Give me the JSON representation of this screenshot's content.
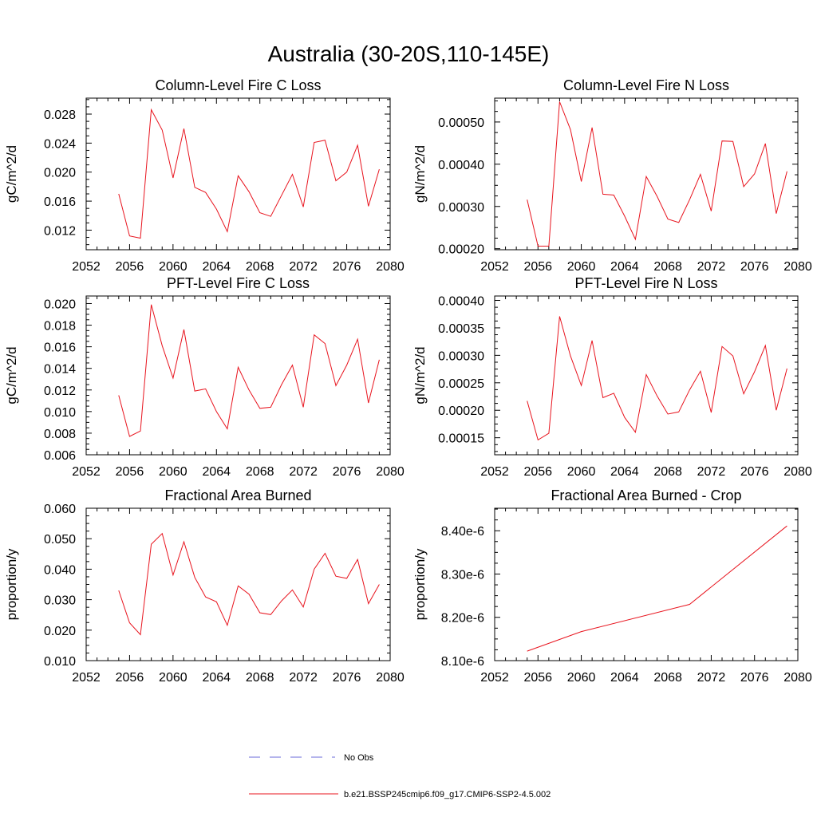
{
  "figure_title": "Australia (30-20S,110-145E)",
  "legend": {
    "obs_label": "No Obs",
    "model_label": "b.e21.BSSP245cmip6.f09_g17.CMIP6-SSP2-4.5.002",
    "obs_color": "#6a6ad8",
    "model_color": "#e8141e"
  },
  "chart_data": [
    {
      "type": "line",
      "title": "Column-Level Fire C Loss",
      "ylabel": "gC/m^2/d",
      "xlabel": "",
      "xlim": [
        2052,
        2080
      ],
      "ylim": [
        0.0093,
        0.0302
      ],
      "xticks": [
        2052,
        2056,
        2060,
        2064,
        2068,
        2072,
        2076,
        2080
      ],
      "xtick_labels": [
        "2052",
        "2056",
        "2060",
        "2064",
        "2068",
        "2072",
        "2076",
        "2080"
      ],
      "yticks": [
        0.012,
        0.016,
        0.02,
        0.024,
        0.028
      ],
      "ytick_labels": [
        "0.012",
        "0.016",
        "0.020",
        "0.024",
        "0.028"
      ],
      "series": [
        {
          "name": "b.e21.BSSP245cmip6.f09_g17.CMIP6-SSP2-4.5.002",
          "x": [
            2055,
            2056,
            2057,
            2058,
            2059,
            2060,
            2061,
            2062,
            2063,
            2064,
            2065,
            2066,
            2067,
            2068,
            2069,
            2070,
            2071,
            2072,
            2073,
            2074,
            2075,
            2076,
            2077,
            2078,
            2079
          ],
          "values": [
            0.017,
            0.0112,
            0.0109,
            0.0286,
            0.0258,
            0.0192,
            0.026,
            0.0179,
            0.0172,
            0.0149,
            0.0118,
            0.0195,
            0.0173,
            0.0144,
            0.0139,
            0.0168,
            0.0197,
            0.0152,
            0.0241,
            0.0244,
            0.0188,
            0.02,
            0.0237,
            0.0153,
            0.0204
          ]
        }
      ]
    },
    {
      "type": "line",
      "title": "Column-Level Fire N Loss",
      "ylabel": "gN/m^2/d",
      "xlabel": "",
      "xlim": [
        2052,
        2080
      ],
      "ylim": [
        0.0001975,
        0.0005565
      ],
      "xticks": [
        2052,
        2056,
        2060,
        2064,
        2068,
        2072,
        2076,
        2080
      ],
      "xtick_labels": [
        "2052",
        "2056",
        "2060",
        "2064",
        "2068",
        "2072",
        "2076",
        "2080"
      ],
      "yticks": [
        0.0002,
        0.0003,
        0.0004,
        0.0005
      ],
      "ytick_labels": [
        "0.00020",
        "0.00030",
        "0.00040",
        "0.00050"
      ],
      "series": [
        {
          "name": "b.e21.BSSP245cmip6.f09_g17.CMIP6-SSP2-4.5.002",
          "x": [
            2055,
            2056,
            2057,
            2058,
            2059,
            2060,
            2061,
            2062,
            2063,
            2064,
            2065,
            2066,
            2067,
            2068,
            2069,
            2070,
            2071,
            2072,
            2073,
            2074,
            2075,
            2076,
            2077,
            2078,
            2079
          ],
          "values": [
            0.000316,
            0.000206,
            0.000206,
            0.000548,
            0.000482,
            0.000359,
            0.000487,
            0.000329,
            0.000327,
            0.000277,
            0.000222,
            0.000371,
            0.000324,
            0.00027,
            0.000262,
            0.000316,
            0.000376,
            0.000289,
            0.000455,
            0.000454,
            0.000347,
            0.000377,
            0.000449,
            0.000283,
            0.000383
          ]
        }
      ]
    },
    {
      "type": "line",
      "title": "PFT-Level Fire C Loss",
      "ylabel": "gC/m^2/d",
      "xlabel": "",
      "xlim": [
        2052,
        2080
      ],
      "ylim": [
        0.006,
        0.0207
      ],
      "xticks": [
        2052,
        2056,
        2060,
        2064,
        2068,
        2072,
        2076,
        2080
      ],
      "xtick_labels": [
        "2052",
        "2056",
        "2060",
        "2064",
        "2068",
        "2072",
        "2076",
        "2080"
      ],
      "yticks": [
        0.006,
        0.008,
        0.01,
        0.012,
        0.014,
        0.016,
        0.018,
        0.02
      ],
      "ytick_labels": [
        "0.006",
        "0.008",
        "0.010",
        "0.012",
        "0.014",
        "0.016",
        "0.018",
        "0.020"
      ],
      "series": [
        {
          "name": "b.e21.BSSP245cmip6.f09_g17.CMIP6-SSP2-4.5.002",
          "x": [
            2055,
            2056,
            2057,
            2058,
            2059,
            2060,
            2061,
            2062,
            2063,
            2064,
            2065,
            2066,
            2067,
            2068,
            2069,
            2070,
            2071,
            2072,
            2073,
            2074,
            2075,
            2076,
            2077,
            2078,
            2079
          ],
          "values": [
            0.0115,
            0.0077,
            0.0082,
            0.0199,
            0.0161,
            0.0131,
            0.0176,
            0.0119,
            0.0121,
            0.01,
            0.0084,
            0.0141,
            0.012,
            0.0103,
            0.0104,
            0.0125,
            0.0143,
            0.0104,
            0.0171,
            0.0163,
            0.0124,
            0.0143,
            0.0167,
            0.0108,
            0.0148
          ]
        }
      ]
    },
    {
      "type": "line",
      "title": "PFT-Level Fire N Loss",
      "ylabel": "gN/m^2/d",
      "xlabel": "",
      "xlim": [
        2052,
        2080
      ],
      "ylim": [
        0.000119,
        0.000408
      ],
      "xticks": [
        2052,
        2056,
        2060,
        2064,
        2068,
        2072,
        2076,
        2080
      ],
      "xtick_labels": [
        "2052",
        "2056",
        "2060",
        "2064",
        "2068",
        "2072",
        "2076",
        "2080"
      ],
      "yticks": [
        0.00015,
        0.0002,
        0.00025,
        0.0003,
        0.00035,
        0.0004
      ],
      "ytick_labels": [
        "0.00015",
        "0.00020",
        "0.00025",
        "0.00030",
        "0.00035",
        "0.00040"
      ],
      "series": [
        {
          "name": "b.e21.BSSP245cmip6.f09_g17.CMIP6-SSP2-4.5.002",
          "x": [
            2055,
            2056,
            2057,
            2058,
            2059,
            2060,
            2061,
            2062,
            2063,
            2064,
            2065,
            2066,
            2067,
            2068,
            2069,
            2070,
            2071,
            2072,
            2073,
            2074,
            2075,
            2076,
            2077,
            2078,
            2079
          ],
          "values": [
            0.000217,
            0.000146,
            0.000158,
            0.000371,
            0.000299,
            0.000245,
            0.000327,
            0.000223,
            0.000231,
            0.000187,
            0.00016,
            0.000265,
            0.000226,
            0.000193,
            0.000197,
            0.000237,
            0.000271,
            0.000196,
            0.000316,
            0.000299,
            0.00023,
            0.00027,
            0.000318,
            0.0002,
            0.000276
          ]
        }
      ]
    },
    {
      "type": "line",
      "title": "Fractional Area Burned",
      "ylabel": "proportion/y",
      "xlabel": "",
      "xlim": [
        2052,
        2080
      ],
      "ylim": [
        0.01,
        0.06
      ],
      "xticks": [
        2052,
        2056,
        2060,
        2064,
        2068,
        2072,
        2076,
        2080
      ],
      "xtick_labels": [
        "2052",
        "2056",
        "2060",
        "2064",
        "2068",
        "2072",
        "2076",
        "2080"
      ],
      "yticks": [
        0.01,
        0.02,
        0.03,
        0.04,
        0.05,
        0.06
      ],
      "ytick_labels": [
        "0.010",
        "0.020",
        "0.030",
        "0.040",
        "0.050",
        "0.060"
      ],
      "series": [
        {
          "name": "b.e21.BSSP245cmip6.f09_g17.CMIP6-SSP2-4.5.002",
          "x": [
            2055,
            2056,
            2057,
            2058,
            2059,
            2060,
            2061,
            2062,
            2063,
            2064,
            2065,
            2066,
            2067,
            2068,
            2069,
            2070,
            2071,
            2072,
            2073,
            2074,
            2075,
            2076,
            2077,
            2078,
            2079
          ],
          "values": [
            0.033,
            0.0224,
            0.0185,
            0.0482,
            0.0517,
            0.0381,
            0.049,
            0.0373,
            0.0309,
            0.0293,
            0.0216,
            0.0345,
            0.0318,
            0.0257,
            0.0251,
            0.0296,
            0.0332,
            0.0276,
            0.04,
            0.0452,
            0.0377,
            0.037,
            0.0432,
            0.0287,
            0.035
          ]
        }
      ]
    },
    {
      "type": "line",
      "title": "Fractional Area Burned - Crop",
      "ylabel": "proportion/y",
      "xlabel": "",
      "xlim": [
        2052,
        2080
      ],
      "ylim": [
        8.1e-06,
        8.452e-06
      ],
      "xticks": [
        2052,
        2056,
        2060,
        2064,
        2068,
        2072,
        2076,
        2080
      ],
      "xtick_labels": [
        "2052",
        "2056",
        "2060",
        "2064",
        "2068",
        "2072",
        "2076",
        "2080"
      ],
      "yticks": [
        8.1e-06,
        8.2e-06,
        8.3e-06,
        8.4e-06
      ],
      "ytick_labels": [
        "8.10e-6",
        "8.20e-6",
        "8.30e-6",
        "8.40e-6"
      ],
      "series": [
        {
          "name": "b.e21.BSSP245cmip6.f09_g17.CMIP6-SSP2-4.5.002",
          "x": [
            2055,
            2060,
            2070,
            2079
          ],
          "values": [
            8.122e-06,
            8.167e-06,
            8.23e-06,
            8.411e-06
          ]
        }
      ]
    }
  ]
}
